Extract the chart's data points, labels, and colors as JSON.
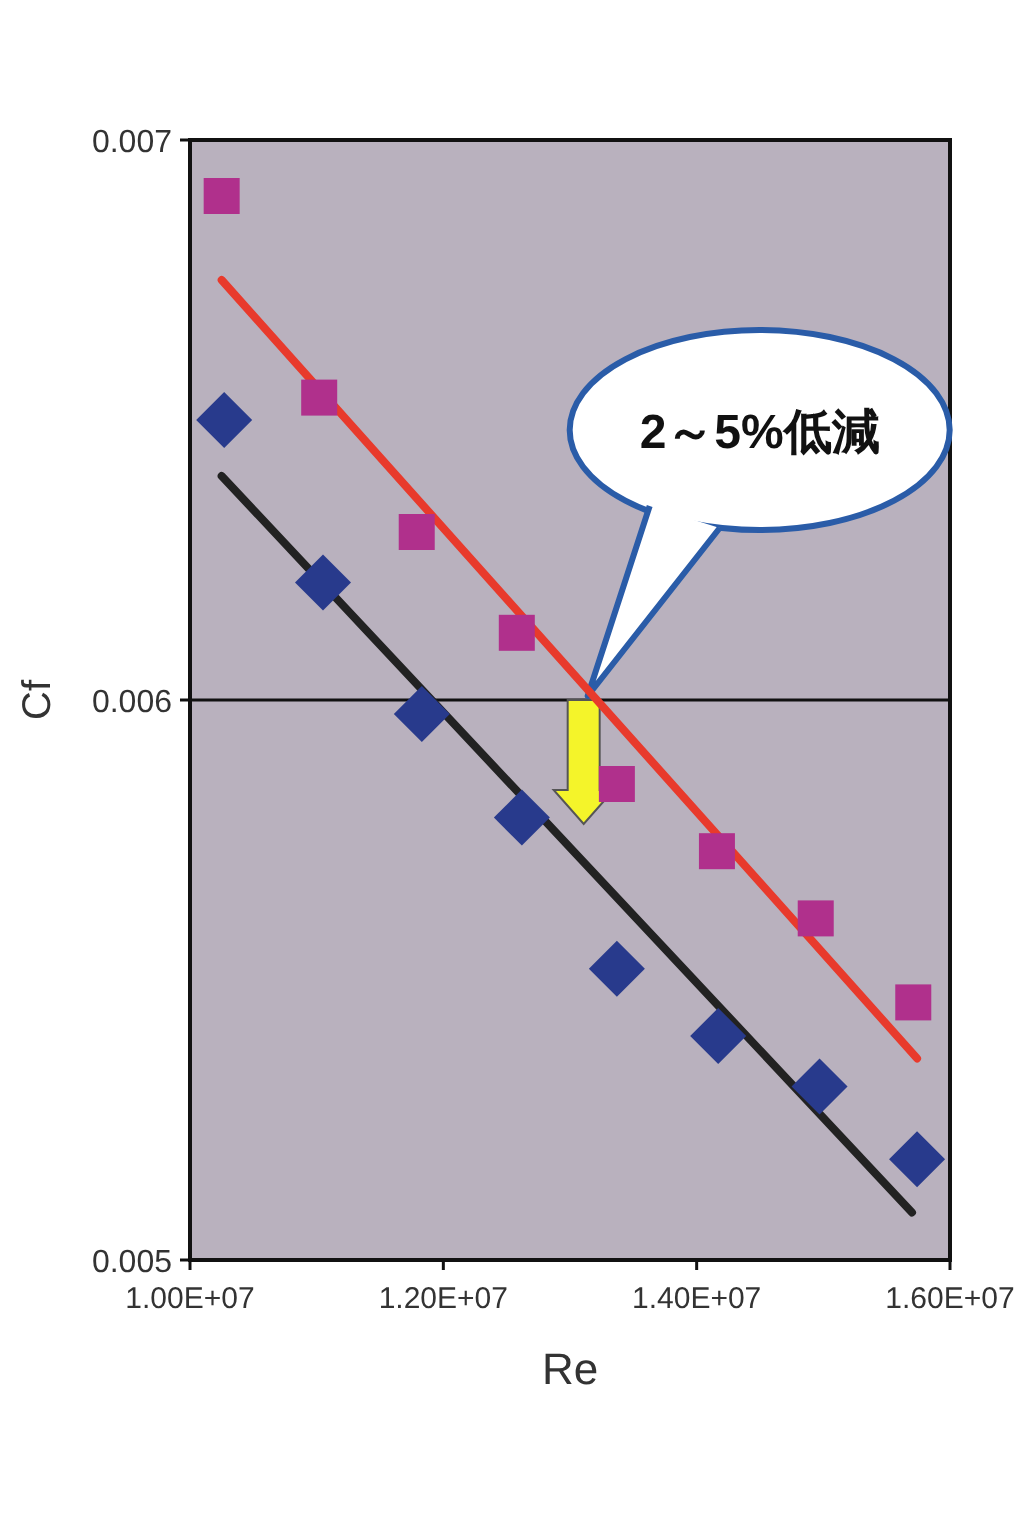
{
  "chart_data": {
    "type": "scatter",
    "xlabel": "Re",
    "ylabel": "Cf",
    "xlim": [
      10000000,
      16000000
    ],
    "xticks": [
      {
        "value": 10000000,
        "label": "1.00E+07"
      },
      {
        "value": 12000000,
        "label": "1.20E+07"
      },
      {
        "value": 14000000,
        "label": "1.40E+07"
      },
      {
        "value": 16000000,
        "label": "1.60E+07"
      }
    ],
    "ylim": [
      0.005,
      0.007
    ],
    "yticks": [
      0.005,
      0.006,
      0.007
    ],
    "grid": "y",
    "series": [
      {
        "marker": "square",
        "color": "#b0308c",
        "x": [
          10250000,
          11020000,
          11790000,
          12580000,
          13370000,
          14160000,
          14940000,
          15710000
        ],
        "values": [
          0.0069,
          0.00654,
          0.0063,
          0.00612,
          0.00585,
          0.00573,
          0.00561,
          0.00546
        ]
      },
      {
        "marker": "diamond",
        "color": "#283a8c",
        "x": [
          10270000,
          11050000,
          11830000,
          12620000,
          13370000,
          14170000,
          14970000,
          15740000
        ],
        "values": [
          0.0065,
          0.00621,
          0.005975,
          0.00579,
          0.00552,
          0.0054,
          0.00531,
          0.00518
        ]
      },
      {
        "type": "line",
        "marker": "none",
        "color": "#e83a2c",
        "x": [
          10250000,
          15740000
        ],
        "values": [
          0.00675,
          0.00536
        ]
      },
      {
        "type": "line",
        "marker": "none",
        "color": "#222222",
        "x": [
          10250000,
          15700000
        ],
        "values": [
          0.0064,
          0.005085
        ]
      }
    ],
    "annotations": [
      "2～5%低減"
    ]
  }
}
